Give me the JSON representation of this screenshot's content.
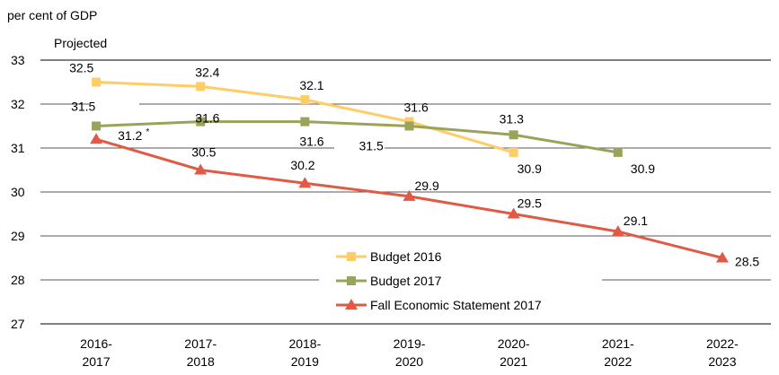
{
  "chart_data": {
    "type": "line",
    "title": "",
    "ylabel": "per cent of GDP",
    "xlabel": "",
    "annotation": "Projected",
    "ylim": [
      27,
      33
    ],
    "yticks": [
      27,
      28,
      29,
      30,
      31,
      32,
      33
    ],
    "grid": true,
    "legend_position": "bottom-center",
    "categories": [
      [
        "2016-",
        "2017"
      ],
      [
        "2017-",
        "2018"
      ],
      [
        "2018-",
        "2019"
      ],
      [
        "2019-",
        "2020"
      ],
      [
        "2020-",
        "2021"
      ],
      [
        "2021-",
        "2022"
      ],
      [
        "2022-",
        "2023"
      ]
    ],
    "series": [
      {
        "name": "Budget 2016",
        "color": "#FFCC66",
        "marker": "square",
        "values": [
          32.5,
          32.4,
          32.1,
          31.6,
          30.9,
          null,
          null
        ],
        "labels": [
          "32.5",
          "32.4",
          "32.1",
          "31.6",
          "30.9",
          null,
          null
        ]
      },
      {
        "name": "Budget 2017",
        "color": "#9BA35A",
        "marker": "square",
        "values": [
          31.5,
          31.6,
          31.6,
          31.5,
          31.3,
          30.9,
          null
        ],
        "labels": [
          "31.5",
          "31.6",
          "31.6",
          "31.5",
          "31.3",
          "30.9",
          null
        ]
      },
      {
        "name": "Fall Economic Statement 2017",
        "color": "#E05A45",
        "marker": "triangle",
        "values": [
          31.2,
          30.5,
          30.2,
          29.9,
          29.5,
          29.1,
          28.5
        ],
        "labels": [
          "31.2 *",
          "30.5",
          "30.2",
          "29.9",
          "29.5",
          "29.1",
          "28.5"
        ]
      }
    ]
  }
}
